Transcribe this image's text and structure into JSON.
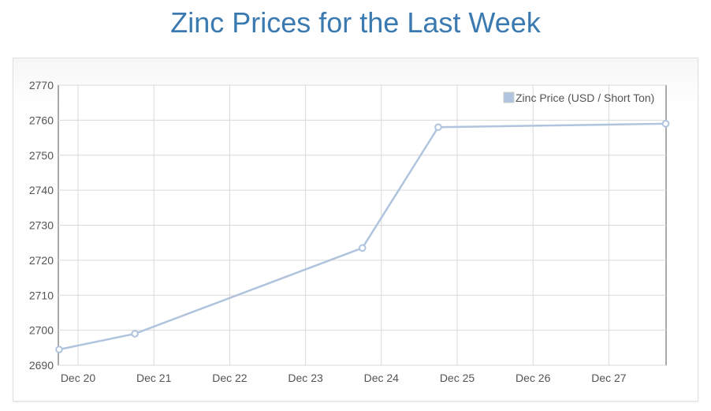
{
  "page": {
    "title": "Zinc Prices for the Last Week"
  },
  "chart_data": {
    "type": "line",
    "x_labels": [
      "Dec 20",
      "Dec 21",
      "Dec 22",
      "Dec 23",
      "Dec 24",
      "Dec 25",
      "Dec 26",
      "Dec 27"
    ],
    "ylim": [
      2690,
      2770
    ],
    "yticks": [
      2690,
      2700,
      2710,
      2720,
      2730,
      2740,
      2750,
      2760,
      2770
    ],
    "grid": true,
    "legend_position": "top-right",
    "series": [
      {
        "name": "Zinc Price (USD / Short Ton)",
        "color": "#b0c4de",
        "points": [
          {
            "x": "Dec 19.75",
            "y": 2694.5
          },
          {
            "x": "Dec 20.75",
            "y": 2699
          },
          {
            "x": "Dec 23.75",
            "y": 2723.5
          },
          {
            "x": "Dec 24.75",
            "y": 2758
          },
          {
            "x": "Dec 27.75",
            "y": 2759
          }
        ]
      }
    ]
  }
}
